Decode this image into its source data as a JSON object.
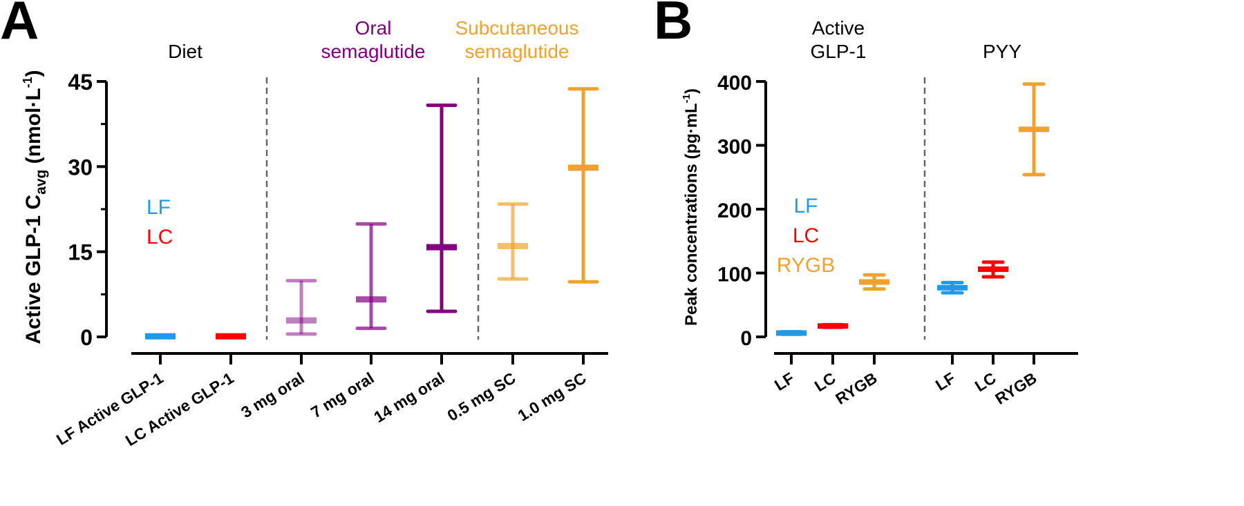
{
  "chart_data": [
    {
      "panel": "A",
      "type": "scatter",
      "subtype": "mean-with-range",
      "ylabel_main": "Active GLP-1 C",
      "ylabel_sub": "avg",
      "ylabel_unit": " (nmol·L",
      "ylabel_sup": "-1",
      "ylabel_close": ")",
      "ylim": [
        0,
        45
      ],
      "yticks": [
        "0",
        "15",
        "30",
        "45"
      ],
      "ytick_values": [
        0,
        15,
        30,
        45
      ],
      "minor_step": 7.5,
      "groups": [
        {
          "label": "Diet",
          "color": "#000000"
        },
        {
          "label_lines": [
            "Oral",
            "semaglutide"
          ],
          "color": "#800080"
        },
        {
          "label_lines": [
            "Subcutaneous",
            "semaglutide"
          ],
          "color": "#F0A22E"
        }
      ],
      "legend": [
        {
          "label": "LF",
          "color": "#1E9BE8"
        },
        {
          "label": "LC",
          "color": "#FF0000"
        }
      ],
      "categories": [
        "LF Active GLP-1",
        "LC Active GLP-1",
        "3 mg oral",
        "7 mg oral",
        "14 mg oral",
        "0.5 mg SC",
        "1.0 mg SC"
      ],
      "points": [
        {
          "mean": 0.1,
          "low": null,
          "high": null,
          "color": "#1E9BE8",
          "opacity": 1
        },
        {
          "mean": 0.1,
          "low": null,
          "high": null,
          "color": "#FF0000",
          "opacity": 1
        },
        {
          "mean": 2.9,
          "low": 0.5,
          "high": 9.9,
          "color": "#800080",
          "opacity": 0.5
        },
        {
          "mean": 6.6,
          "low": 1.5,
          "high": 19.9,
          "color": "#800080",
          "opacity": 0.7
        },
        {
          "mean": 15.8,
          "low": 4.5,
          "high": 40.8,
          "color": "#800080",
          "opacity": 1
        },
        {
          "mean": 16.0,
          "low": 10.2,
          "high": 23.4,
          "color": "#F0A22E",
          "opacity": 0.7
        },
        {
          "mean": 29.8,
          "low": 9.7,
          "high": 43.7,
          "color": "#F0A22E",
          "opacity": 1
        }
      ]
    },
    {
      "panel": "B",
      "type": "scatter",
      "subtype": "mean-with-range",
      "ylabel_main": "Peak concentrations (pg·mL",
      "ylabel_sup": "-1",
      "ylabel_close": ")",
      "ylim": [
        0,
        400
      ],
      "yticks": [
        "0",
        "100",
        "200",
        "300",
        "400"
      ],
      "ytick_values": [
        0,
        100,
        200,
        300,
        400
      ],
      "groups": [
        {
          "label_lines": [
            "Active",
            "GLP-1"
          ],
          "color": "#000000"
        },
        {
          "label": "PYY",
          "color": "#000000"
        }
      ],
      "legend": [
        {
          "label": "LF",
          "color": "#1E9BE8"
        },
        {
          "label": "LC",
          "color": "#FF0000"
        },
        {
          "label": "RYGB",
          "color": "#F0A22E"
        }
      ],
      "categories": [
        "LF",
        "LC",
        "RYGB",
        "LF",
        "LC",
        "RYGB"
      ],
      "points": [
        {
          "mean": 6,
          "low": 4,
          "high": 8,
          "color": "#1E9BE8"
        },
        {
          "mean": 17,
          "low": 15,
          "high": 19,
          "color": "#FF0000"
        },
        {
          "mean": 86,
          "low": 75,
          "high": 97,
          "color": "#F0A22E"
        },
        {
          "mean": 77,
          "low": 69,
          "high": 85,
          "color": "#1E9BE8"
        },
        {
          "mean": 106,
          "low": 94,
          "high": 117,
          "color": "#FF0000"
        },
        {
          "mean": 325,
          "low": 254,
          "high": 396,
          "color": "#F0A22E"
        }
      ]
    }
  ],
  "panel_letters": [
    "A",
    "B"
  ]
}
